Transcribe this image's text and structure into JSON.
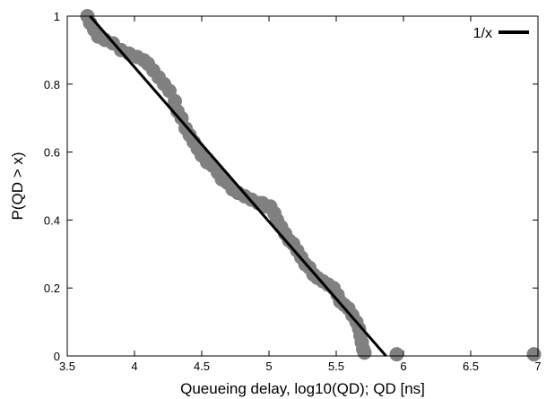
{
  "chart_data": {
    "type": "scatter",
    "xlabel": "Queueing delay, log10(QD); QD [ns]",
    "ylabel": "P(QD > x)",
    "xlim": [
      3.5,
      7
    ],
    "ylim": [
      0,
      1
    ],
    "xticks": [
      "3.5",
      "4",
      "4.5",
      "5",
      "5.5",
      "6",
      "6.5",
      "7"
    ],
    "yticks": [
      "0",
      "0.2",
      "0.4",
      "0.6",
      "0.8",
      "1"
    ],
    "grid": false,
    "legend_position": "top-right",
    "series": [
      {
        "name": "",
        "kind": "points",
        "color": "#808080",
        "x": [
          3.65,
          3.67,
          3.7,
          3.73,
          3.78,
          3.84,
          3.9,
          3.96,
          4.02,
          4.07,
          4.1,
          4.14,
          4.18,
          4.22,
          4.26,
          4.3,
          4.32,
          4.35,
          4.38,
          4.41,
          4.44,
          4.47,
          4.5,
          4.54,
          4.58,
          4.62,
          4.65,
          4.69,
          4.73,
          4.77,
          4.82,
          4.87,
          4.92,
          4.95,
          4.98,
          5.01,
          5.04,
          5.06,
          5.09,
          5.12,
          5.15,
          5.18,
          5.21,
          5.24,
          5.27,
          5.3,
          5.33,
          5.36,
          5.4,
          5.44,
          5.48,
          5.51,
          5.53,
          5.56,
          5.59,
          5.62,
          5.65,
          5.67,
          5.68,
          5.69,
          5.7,
          5.71,
          5.95,
          6.97
        ],
        "y": [
          1.0,
          0.98,
          0.96,
          0.94,
          0.93,
          0.92,
          0.9,
          0.89,
          0.88,
          0.87,
          0.86,
          0.84,
          0.82,
          0.8,
          0.78,
          0.75,
          0.72,
          0.7,
          0.67,
          0.65,
          0.63,
          0.61,
          0.59,
          0.57,
          0.56,
          0.54,
          0.52,
          0.51,
          0.49,
          0.48,
          0.47,
          0.46,
          0.45,
          0.45,
          0.44,
          0.44,
          0.42,
          0.4,
          0.38,
          0.36,
          0.34,
          0.33,
          0.31,
          0.29,
          0.27,
          0.26,
          0.24,
          0.23,
          0.22,
          0.21,
          0.2,
          0.18,
          0.16,
          0.15,
          0.14,
          0.12,
          0.1,
          0.08,
          0.06,
          0.04,
          0.02,
          0.01,
          0.005,
          0.005
        ]
      },
      {
        "name": "1/x",
        "kind": "line",
        "color": "#000000",
        "x": [
          3.67,
          5.87
        ],
        "y": [
          1.0,
          0.0
        ]
      }
    ]
  }
}
